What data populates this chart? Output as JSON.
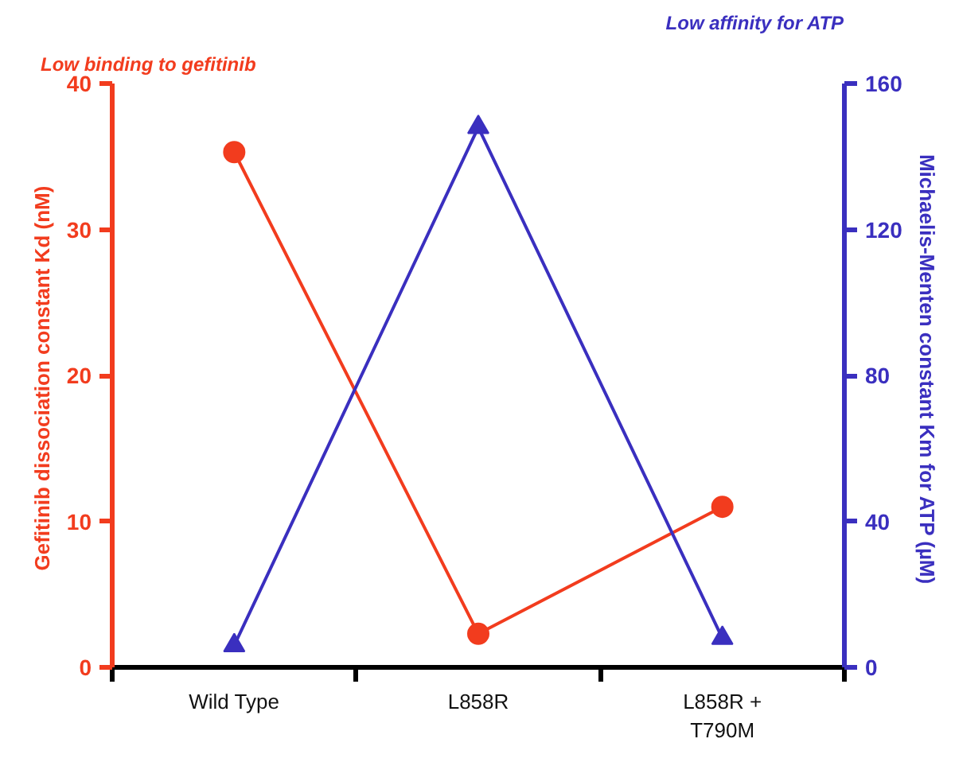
{
  "chart_data": {
    "type": "line",
    "categories": [
      "Wild Type",
      "L858R",
      "L858R +\nT790M"
    ],
    "ylabel": "Gefitinib dissociation constant Kd  (nM)",
    "y2label": "Michaelis-Menten constant Km  for ATP  (µM)",
    "annotations": [
      "Low binding to gefitinib",
      "Low affinity for ATP"
    ],
    "ylim": [
      0,
      40
    ],
    "yticks": [
      0,
      10,
      20,
      30,
      40
    ],
    "y2lim": [
      0,
      160
    ],
    "y2ticks": [
      0,
      40,
      80,
      120,
      160
    ],
    "grid": false,
    "series": [
      {
        "color": "#f23c1e",
        "marker": "circle",
        "values": [
          35.3,
          2.3,
          11.0
        ]
      },
      {
        "color": "#3a2fbf",
        "marker": "triangle",
        "axis": "y2",
        "values": [
          6,
          148,
          8
        ]
      }
    ]
  }
}
